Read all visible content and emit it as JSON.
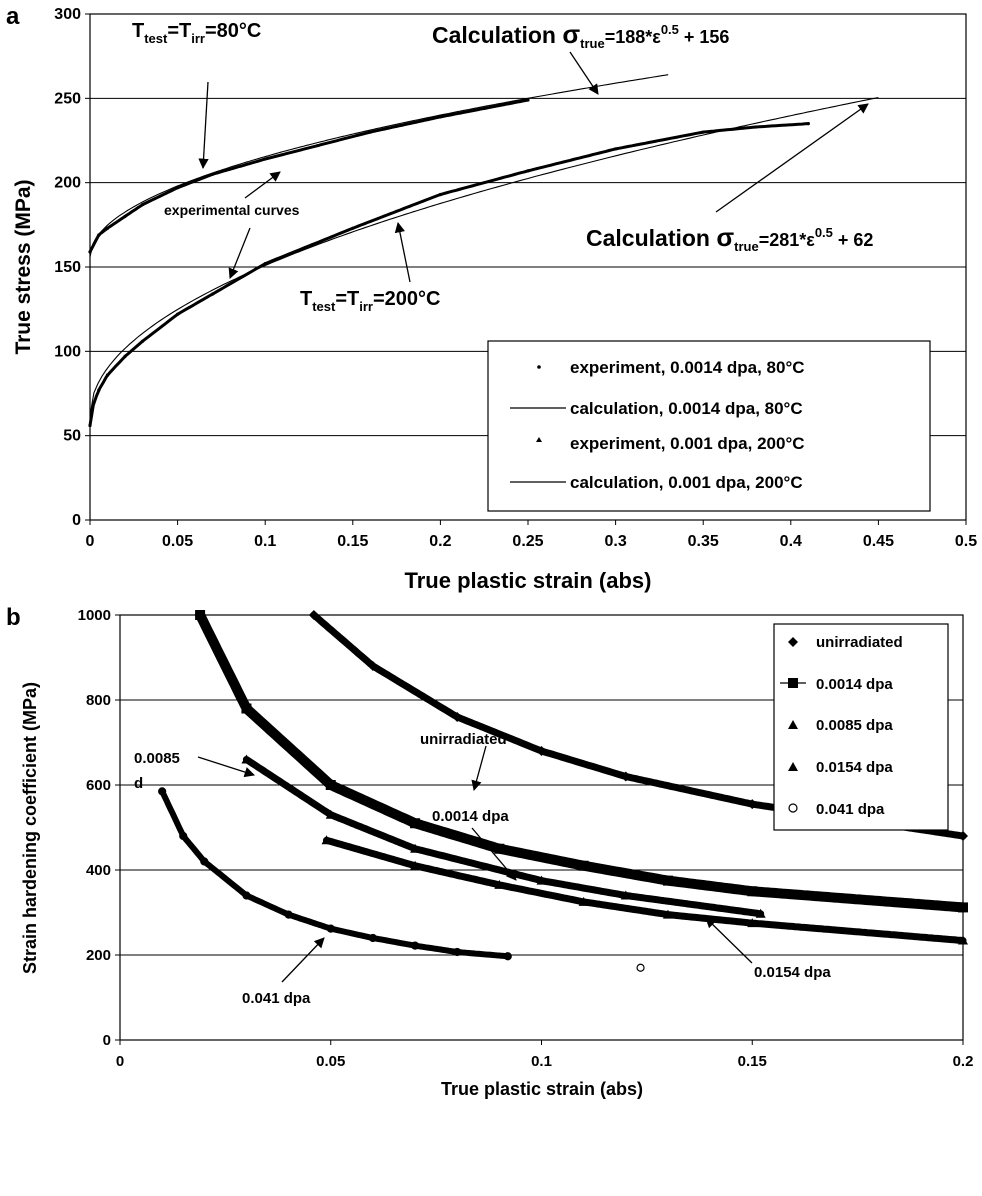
{
  "chart_data": [
    {
      "panel": "a",
      "type": "line",
      "xlabel": "True plastic strain (abs)",
      "ylabel": "True stress  (MPa)",
      "xlim": [
        0,
        0.5
      ],
      "ylim": [
        0,
        300
      ],
      "xticks": [
        "0",
        "0.05",
        "0.1",
        "0.15",
        "0.2",
        "0.25",
        "0.3",
        "0.35",
        "0.4",
        "0.45",
        "0.5"
      ],
      "yticks": [
        "0",
        "50",
        "100",
        "150",
        "200",
        "250",
        "300"
      ],
      "grid": "horizontal",
      "legend_position": "bottom-right",
      "series": [
        {
          "name": "experiment, 0.0014 dpa, 80°C",
          "style": "points",
          "x": [
            0,
            0.005,
            0.01,
            0.02,
            0.03,
            0.05,
            0.07,
            0.1,
            0.13,
            0.16,
            0.2,
            0.25
          ],
          "y": [
            159,
            169,
            173,
            180,
            187,
            197,
            205,
            214,
            222,
            230,
            239,
            249
          ]
        },
        {
          "name": "calculation, 0.0014 dpa, 80°C",
          "style": "line",
          "formula": "188*x^0.5+156",
          "a": 188,
          "p": 0.5,
          "b": 156,
          "xrange": [
            0,
            0.33
          ]
        },
        {
          "name": "experiment, 0.001 dpa, 200°C",
          "style": "points",
          "x": [
            0,
            0.002,
            0.005,
            0.01,
            0.02,
            0.03,
            0.05,
            0.07,
            0.1,
            0.15,
            0.2,
            0.25,
            0.3,
            0.35,
            0.38,
            0.41
          ],
          "y": [
            56,
            69,
            77,
            86,
            97,
            106,
            122,
            134,
            152,
            173,
            193,
            207,
            220,
            230,
            233,
            235
          ]
        },
        {
          "name": "calculation, 0.001 dpa, 200°C",
          "style": "line",
          "formula": "281*x^0.5+62",
          "a": 281,
          "p": 0.5,
          "b": 62,
          "xrange": [
            0,
            0.45
          ]
        }
      ],
      "annotations": [
        {
          "base": "Calculation ",
          "sym": "σ",
          "sub": "true",
          "mid": "=188*ε",
          "sup": "0.5",
          "end": " + 156"
        },
        {
          "base": "Calculation ",
          "sym": "σ",
          "sub": "true",
          "mid": "=281*ε",
          "sup": "0.5",
          "end": " + 62"
        },
        {
          "text": "experimental curves"
        }
      ],
      "temp_labels": [
        {
          "T": "T",
          "sub1": "test",
          "eq": "=T",
          "sub2": "irr",
          "val": "=80°C"
        },
        {
          "T": "T",
          "sub1": "test",
          "eq": "=T",
          "sub2": "irr",
          "val": "=200°C"
        }
      ]
    },
    {
      "panel": "b",
      "type": "scatter",
      "xlabel": "True plastic strain (abs)",
      "ylabel": "Strain hardening coefficient (MPa)",
      "xlim": [
        0,
        0.2
      ],
      "ylim": [
        0,
        1000
      ],
      "xticks": [
        "0",
        "0.05",
        "0.1",
        "0.15",
        "0.2"
      ],
      "yticks": [
        "0",
        "200",
        "400",
        "600",
        "800",
        "1000"
      ],
      "grid": "horizontal",
      "legend_position": "top-right",
      "series": [
        {
          "name": "unirradiated",
          "marker": "diamond",
          "x": [
            0.046,
            0.06,
            0.08,
            0.1,
            0.12,
            0.15,
            0.2
          ],
          "y": [
            1000,
            880,
            760,
            680,
            620,
            555,
            480
          ]
        },
        {
          "name": "0.0014 dpa",
          "marker": "square",
          "x": [
            0.019,
            0.03,
            0.05,
            0.07,
            0.09,
            0.11,
            0.13,
            0.15,
            0.2
          ],
          "y": [
            1000,
            780,
            600,
            510,
            450,
            410,
            375,
            350,
            312
          ]
        },
        {
          "name": "0.0085 dpa",
          "marker": "triangle",
          "x": [
            0.03,
            0.05,
            0.07,
            0.1,
            0.12,
            0.152
          ],
          "y": [
            660,
            530,
            450,
            375,
            340,
            297
          ]
        },
        {
          "name": "0.0154 dpa",
          "marker": "triangle",
          "x": [
            0.049,
            0.07,
            0.09,
            0.11,
            0.13,
            0.15,
            0.2
          ],
          "y": [
            470,
            410,
            365,
            325,
            295,
            275,
            234
          ]
        },
        {
          "name": "0.041 dpa",
          "marker": "circle",
          "x": [
            0.01,
            0.015,
            0.02,
            0.03,
            0.04,
            0.05,
            0.06,
            0.07,
            0.08,
            0.092,
            0.1235
          ],
          "y": [
            585,
            480,
            420,
            340,
            295,
            262,
            240,
            222,
            207,
            197,
            170
          ]
        }
      ],
      "curve_labels": [
        "unirradiated",
        "0.0085",
        "d",
        "0.0014 dpa",
        "0.041 dpa",
        "0.0154 dpa"
      ]
    }
  ],
  "panel_labels": [
    "a",
    "b"
  ]
}
